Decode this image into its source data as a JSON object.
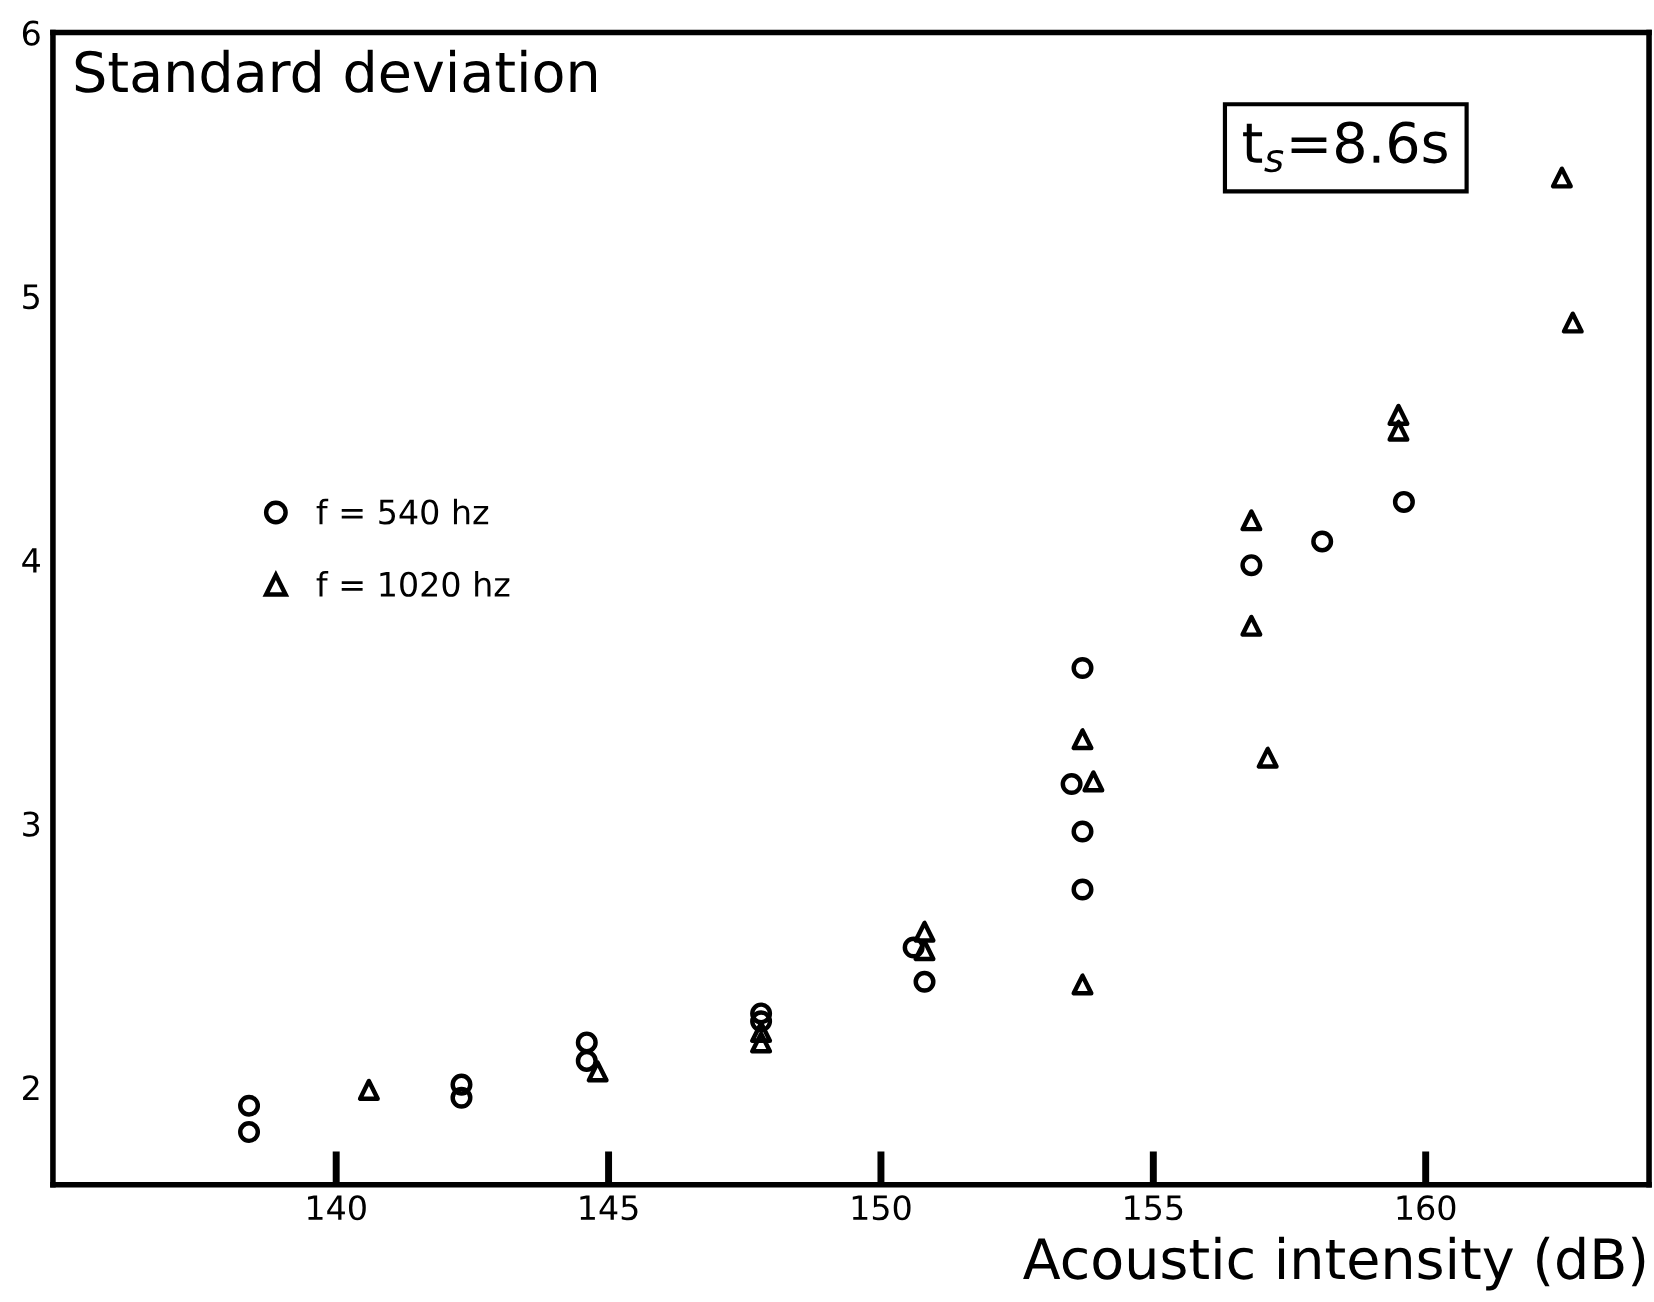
{
  "chart_data": {
    "type": "scatter",
    "title": "Standard deviation",
    "xlabel": "Acoustic intensity (dB)",
    "annotations": [
      "t$_{s}$=8.6s"
    ],
    "xlim": [
      134.8,
      164.1
    ],
    "xticks": [
      140,
      145,
      150,
      155,
      160
    ],
    "ylim": [
      1.63,
      6
    ],
    "yticks": [
      2,
      3,
      4,
      5,
      6
    ],
    "grid": false,
    "legend": "left",
    "series": [
      {
        "name": "f = 540 hz",
        "color": "#000000",
        "marker": "circle",
        "x": [
          138.4,
          138.4,
          142.3,
          142.3,
          144.6,
          144.6,
          147.8,
          147.8,
          150.6,
          150.8,
          153.7,
          153.5,
          153.7,
          153.7,
          156.8,
          158.1,
          159.6
        ],
        "values": [
          1.93,
          1.83,
          2.01,
          1.96,
          2.17,
          2.1,
          2.28,
          2.25,
          2.53,
          2.4,
          3.59,
          3.15,
          2.97,
          2.75,
          3.98,
          4.07,
          4.22
        ]
      },
      {
        "name": "f = 1020 hz",
        "color": "#000000",
        "marker": "triangle",
        "x": [
          140.6,
          144.8,
          147.8,
          147.8,
          150.8,
          150.8,
          153.7,
          153.9,
          153.7,
          156.8,
          156.8,
          157.1,
          159.5,
          159.5,
          162.5,
          162.7
        ],
        "values": [
          1.99,
          2.06,
          2.21,
          2.17,
          2.59,
          2.52,
          3.32,
          3.16,
          2.39,
          4.15,
          3.75,
          3.25,
          4.55,
          4.49,
          5.45,
          4.9
        ]
      }
    ]
  }
}
